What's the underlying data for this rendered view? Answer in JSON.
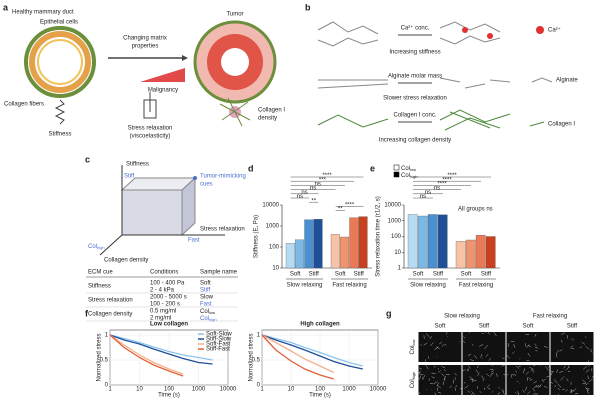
{
  "panel_a": {
    "label": "a",
    "healthy_title": "Healthy mammary duct",
    "epithelial": "Epithelial cells",
    "collagen_fibers": "Collagen fibers",
    "arrow_label": [
      "Changing matrix",
      "properties"
    ],
    "tumor": "Tumor",
    "malignancy": "Malignancy",
    "stiffness": "Stiffness",
    "stress_relaxation": [
      "Stress relaxation",
      "(viscoelasticity)"
    ],
    "collagen_density": [
      "Collagen I",
      "density"
    ]
  },
  "panel_b": {
    "label": "b",
    "rows": [
      {
        "reagent": "Ca²⁺ conc.",
        "caption": "Increasing stiffness"
      },
      {
        "reagent": "Alginate molar mass",
        "caption": "Slower stress relaxation"
      },
      {
        "reagent": "Collagen I conc.",
        "caption": "Increasing collagen density"
      }
    ],
    "legend": [
      "Ca²⁺",
      "Alginate",
      "Collagen I"
    ]
  },
  "panel_c": {
    "label": "c",
    "stiffness": "Stiffness",
    "stiff": "Stiff",
    "cue": [
      "Tumor-mimicking",
      "cues"
    ],
    "stress_relaxation": "Stress relaxation",
    "fast": "Fast",
    "col": "Col",
    "col_sub": "high",
    "collagen_density": "Collagen density",
    "table": {
      "header": [
        "ECM cue",
        "Conditions",
        "Sample name"
      ],
      "rows": [
        {
          "cue": "Stiffness",
          "conditions": [
            "100 - 400 Pa",
            "2 - 4 kPa"
          ],
          "samples": [
            [
              "Soft"
            ],
            [
              "Stiff"
            ]
          ]
        },
        {
          "cue": "Stress relaxation",
          "conditions": [
            "2000 - 5000 s",
            "100 - 200 s"
          ],
          "samples": [
            [
              "Slow"
            ],
            [
              "Fast"
            ]
          ]
        },
        {
          "cue": "Collagen density",
          "conditions": [
            "0.5 mg/ml",
            "2 mg/ml"
          ],
          "samples": [
            [
              "Col",
              "low"
            ],
            [
              "Col",
              "high"
            ]
          ]
        }
      ]
    }
  },
  "panel_d": {
    "label": "d",
    "type": "bar",
    "ylabel": "Stiffness (E, Pa)",
    "yscale": "log",
    "ylim": [
      10,
      10000
    ],
    "yticks": [
      10,
      100,
      1000,
      10000
    ],
    "categories": [
      "Soft",
      "Stiff",
      "Soft",
      "Stiff"
    ],
    "groups": [
      "Slow relaxing",
      "Fast relaxing"
    ],
    "series": [
      {
        "colors": [
          "#b5dbf2",
          "#4a8fd0",
          "#f7c2a6",
          "#ea7a55"
        ],
        "values": [
          150,
          2000,
          400,
          2500
        ]
      },
      {
        "colors": [
          "#7bb8e4",
          "#1f4f99",
          "#f09470",
          "#c9401f"
        ],
        "values": [
          220,
          2100,
          300,
          2800
        ]
      }
    ],
    "significance": [
      "****",
      "***",
      "ns",
      "ns",
      "ns",
      "ns",
      "**",
      "****",
      "**"
    ]
  },
  "panel_e": {
    "label": "e",
    "type": "bar",
    "ylabel": "Stress relaxation time (τ1/2, s)",
    "yscale": "log",
    "ylim": [
      1,
      10000
    ],
    "yticks": [
      1,
      10,
      100,
      1000,
      10000
    ],
    "categories": [
      "Soft",
      "Stiff",
      "Soft",
      "Stiff"
    ],
    "groups": [
      "Slow relaxing",
      "Fast relaxing"
    ],
    "legend": [
      {
        "text": "Col",
        "sub": "low",
        "color": "#ffffff"
      },
      {
        "text": "Col",
        "sub": "high",
        "color": "#000000"
      }
    ],
    "series": [
      {
        "colors": [
          "#b5dbf2",
          "#4a8fd0",
          "#f7c2a6",
          "#ea7a55"
        ],
        "values": [
          2500,
          2500,
          50,
          120
        ]
      },
      {
        "colors": [
          "#7bb8e4",
          "#1f4f99",
          "#f09470",
          "#c9401f"
        ],
        "values": [
          2000,
          2400,
          60,
          100
        ]
      }
    ],
    "significance": [
      "****",
      "****",
      "****",
      "ns",
      "ns",
      "ns"
    ],
    "note": "All groups ns"
  },
  "panel_f": {
    "label": "f",
    "charts": [
      {
        "type": "line",
        "title": "Low collagen",
        "xlabel": "Time (s)",
        "ylabel": "Normalized stress",
        "xscale": "log",
        "xlim": [
          1,
          10000
        ],
        "xticks": [
          1,
          10,
          100,
          1000,
          10000
        ],
        "ylim": [
          0,
          1.1
        ],
        "yticks": [
          0,
          0.5,
          1
        ],
        "x": [
          1,
          3,
          10,
          30,
          100,
          300,
          1000,
          3000
        ],
        "series": [
          {
            "name": "Soft-Slow",
            "color": "#8cc4ec",
            "values": [
              1,
              0.93,
              0.85,
              0.76,
              0.67,
              0.6,
              0.55,
              0.5
            ]
          },
          {
            "name": "Stiff-Slow",
            "color": "#1f4f99",
            "values": [
              1,
              0.9,
              0.82,
              0.72,
              0.62,
              0.53,
              0.45,
              0.42
            ]
          },
          {
            "name": "Soft-Fast",
            "color": "#f5b08c",
            "values": [
              1,
              0.8,
              0.6,
              0.45,
              0.32,
              0.22,
              null,
              null
            ]
          },
          {
            "name": "Stiff-Fast",
            "color": "#e2603a",
            "values": [
              1,
              0.75,
              0.55,
              0.4,
              0.28,
              0.18,
              null,
              null
            ]
          }
        ]
      },
      {
        "type": "line",
        "title": "High collagen",
        "xlabel": "Time (s)",
        "ylabel": "Normalized stress",
        "xscale": "log",
        "xlim": [
          1,
          10000
        ],
        "xticks": [
          1,
          10,
          100,
          1000,
          10000
        ],
        "ylim": [
          0,
          1.1
        ],
        "yticks": [
          0,
          0.5,
          1
        ],
        "x": [
          1,
          3,
          10,
          30,
          100,
          300,
          1000,
          3000
        ],
        "series": [
          {
            "color": "#8cc4ec",
            "values": [
              1,
              0.93,
              0.85,
              0.75,
              0.65,
              0.55,
              0.45,
              0.38
            ]
          },
          {
            "color": "#1f4f99",
            "values": [
              1,
              0.9,
              0.8,
              0.7,
              0.58,
              0.47,
              0.38,
              0.32
            ]
          },
          {
            "color": "#f5b08c",
            "values": [
              1,
              0.85,
              0.68,
              0.52,
              0.38,
              0.25,
              null,
              null
            ]
          },
          {
            "color": "#e2603a",
            "values": [
              1,
              0.7,
              0.48,
              0.32,
              0.2,
              0.12,
              null,
              null
            ]
          }
        ]
      }
    ]
  },
  "panel_g": {
    "label": "g",
    "groups": [
      "Slow relaxing",
      "Fast relaxing"
    ],
    "columns": [
      "Soft",
      "Stiff",
      "Soft",
      "Stiff"
    ],
    "rows": [
      {
        "text": "Col",
        "sub": "low"
      },
      {
        "text": "Col",
        "sub": "high"
      }
    ]
  }
}
